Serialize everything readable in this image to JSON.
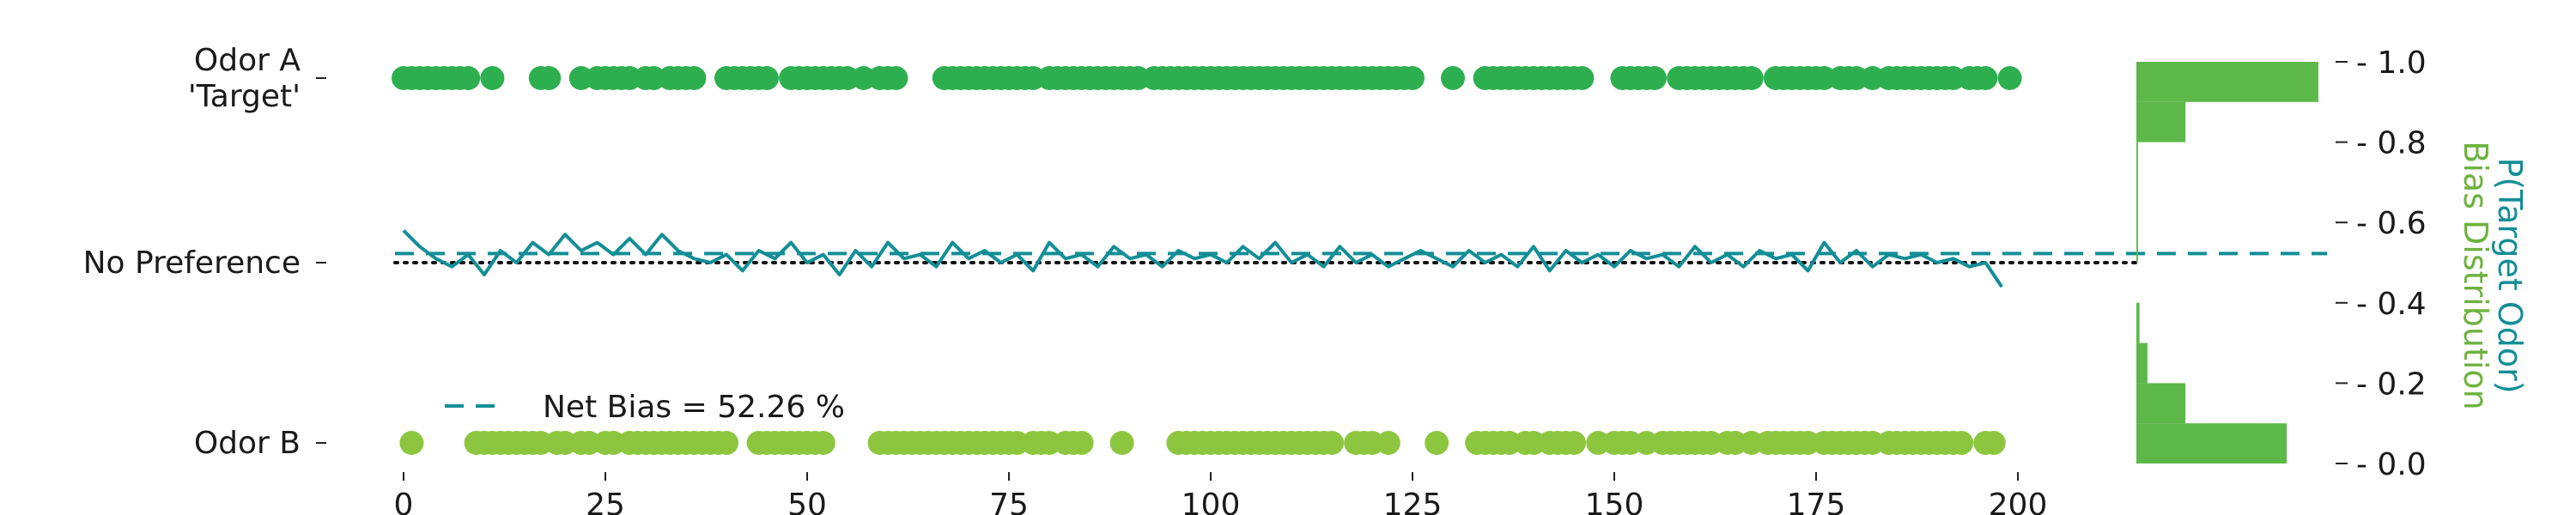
{
  "chart_data": {
    "type": "scatter",
    "xlim": [
      0,
      200
    ],
    "x_ticks": [
      0,
      25,
      50,
      75,
      100,
      125,
      150,
      175,
      200
    ],
    "left_axis": {
      "tick_labels": [
        {
          "id": "odor-a",
          "lines": [
            "Odor A",
            "'Target'"
          ],
          "color": "#1a9e5c"
        },
        {
          "id": "no-preference",
          "lines": [
            "No Preference"
          ],
          "color": "#1a1a1a"
        },
        {
          "id": "odor-b",
          "lines": [
            "Odor B"
          ],
          "color": "#1a1a1a"
        }
      ]
    },
    "right_axis": {
      "ylim": [
        0,
        1
      ],
      "ticks": [
        "0.0",
        "0.2",
        "0.4",
        "0.6",
        "0.8",
        "1.0"
      ],
      "label_1": "P(Target Odor)",
      "label_1_color": "#138e96",
      "label_2": "Bias Distribution",
      "label_2_color": "#6db33f"
    },
    "legend": {
      "label": "Net Bias = 52.26 %",
      "placement": "lower-left"
    },
    "net_bias": 0.5226,
    "no_preference": 0.5,
    "colors": {
      "odor_a": "#2eaf4f",
      "odor_b": "#8cc63f",
      "probability_line": "#138e96",
      "net_bias_line": "#138e96",
      "histogram": "#5db84a"
    },
    "odor_a_trials": [
      0,
      1,
      2,
      3,
      4,
      5,
      6,
      7,
      8,
      11,
      17,
      18,
      22,
      24,
      25,
      26,
      27,
      28,
      30,
      31,
      33,
      34,
      35,
      36,
      40,
      41,
      42,
      43,
      44,
      45,
      48,
      49,
      50,
      51,
      52,
      53,
      54,
      55,
      57,
      59,
      60,
      61,
      67,
      68,
      69,
      70,
      71,
      72,
      73,
      74,
      75,
      76,
      77,
      78,
      80,
      81,
      82,
      83,
      84,
      85,
      86,
      87,
      88,
      89,
      90,
      91,
      93,
      94,
      95,
      96,
      97,
      98,
      99,
      100,
      101,
      102,
      103,
      104,
      105,
      106,
      107,
      108,
      109,
      110,
      111,
      112,
      113,
      114,
      115,
      116,
      117,
      118,
      119,
      120,
      121,
      122,
      123,
      124,
      125,
      130,
      134,
      135,
      136,
      137,
      138,
      139,
      140,
      141,
      142,
      143,
      144,
      145,
      146,
      151,
      152,
      153,
      154,
      155,
      158,
      159,
      160,
      161,
      162,
      163,
      164,
      165,
      166,
      167,
      170,
      171,
      172,
      173,
      174,
      175,
      176,
      178,
      179,
      180,
      182,
      184,
      185,
      186,
      187,
      188,
      189,
      190,
      191,
      192,
      194,
      195,
      196,
      199
    ],
    "odor_b_trials": [
      1,
      9,
      10,
      11,
      12,
      13,
      14,
      15,
      16,
      17,
      19,
      20,
      22,
      23,
      25,
      26,
      28,
      29,
      30,
      31,
      32,
      33,
      34,
      35,
      36,
      37,
      38,
      39,
      40,
      44,
      45,
      46,
      47,
      48,
      49,
      50,
      51,
      52,
      59,
      60,
      61,
      62,
      63,
      64,
      65,
      66,
      67,
      68,
      69,
      70,
      71,
      72,
      73,
      74,
      75,
      76,
      78,
      79,
      80,
      82,
      83,
      84,
      89,
      96,
      97,
      98,
      99,
      100,
      101,
      102,
      103,
      104,
      105,
      106,
      107,
      108,
      109,
      110,
      111,
      112,
      113,
      114,
      115,
      118,
      119,
      120,
      122,
      128,
      133,
      134,
      135,
      136,
      137,
      139,
      140,
      142,
      143,
      144,
      145,
      148,
      150,
      151,
      152,
      154,
      156,
      157,
      158,
      159,
      160,
      161,
      162,
      164,
      165,
      167,
      169,
      170,
      171,
      172,
      173,
      174,
      176,
      177,
      178,
      179,
      180,
      181,
      182,
      184,
      185,
      186,
      187,
      188,
      189,
      190,
      191,
      192,
      193,
      196,
      197
    ],
    "probability_series": {
      "x": [
        0,
        2,
        4,
        6,
        8,
        10,
        12,
        14,
        16,
        18,
        20,
        22,
        24,
        26,
        28,
        30,
        32,
        34,
        36,
        38,
        40,
        42,
        44,
        46,
        48,
        50,
        52,
        54,
        56,
        58,
        60,
        62,
        64,
        66,
        68,
        70,
        72,
        74,
        76,
        78,
        80,
        82,
        84,
        86,
        88,
        90,
        92,
        94,
        96,
        98,
        100,
        102,
        104,
        106,
        108,
        110,
        112,
        114,
        116,
        118,
        120,
        122,
        124,
        126,
        128,
        130,
        132,
        134,
        136,
        138,
        140,
        142,
        144,
        146,
        148,
        150,
        152,
        154,
        156,
        158,
        160,
        162,
        164,
        166,
        168,
        170,
        172,
        174,
        176,
        178,
        180,
        182,
        184,
        186,
        188,
        190,
        192,
        194,
        196,
        198
      ],
      "y": [
        0.58,
        0.54,
        0.51,
        0.49,
        0.52,
        0.47,
        0.53,
        0.5,
        0.55,
        0.52,
        0.57,
        0.53,
        0.55,
        0.52,
        0.56,
        0.52,
        0.57,
        0.53,
        0.51,
        0.5,
        0.52,
        0.48,
        0.53,
        0.51,
        0.55,
        0.5,
        0.52,
        0.47,
        0.53,
        0.49,
        0.55,
        0.51,
        0.52,
        0.49,
        0.55,
        0.51,
        0.53,
        0.5,
        0.52,
        0.48,
        0.55,
        0.51,
        0.52,
        0.49,
        0.54,
        0.51,
        0.52,
        0.49,
        0.53,
        0.51,
        0.52,
        0.5,
        0.54,
        0.51,
        0.55,
        0.5,
        0.52,
        0.49,
        0.54,
        0.5,
        0.52,
        0.49,
        0.51,
        0.53,
        0.51,
        0.49,
        0.53,
        0.5,
        0.52,
        0.49,
        0.54,
        0.48,
        0.53,
        0.5,
        0.52,
        0.49,
        0.53,
        0.51,
        0.52,
        0.49,
        0.54,
        0.5,
        0.52,
        0.49,
        0.53,
        0.51,
        0.52,
        0.48,
        0.55,
        0.5,
        0.53,
        0.49,
        0.52,
        0.51,
        0.52,
        0.5,
        0.51,
        0.49,
        0.5,
        0.44
      ]
    },
    "histogram_bins": [
      {
        "range": [
          0.0,
          0.1
        ],
        "value": 95
      },
      {
        "range": [
          0.1,
          0.2
        ],
        "value": 31
      },
      {
        "range": [
          0.2,
          0.3
        ],
        "value": 7
      },
      {
        "range": [
          0.3,
          0.4
        ],
        "value": 2
      },
      {
        "range": [
          0.5,
          0.8
        ],
        "value": 1
      },
      {
        "range": [
          0.8,
          0.9
        ],
        "value": 31
      },
      {
        "range": [
          0.9,
          1.0
        ],
        "value": 115
      }
    ],
    "histogram_max": 115
  }
}
